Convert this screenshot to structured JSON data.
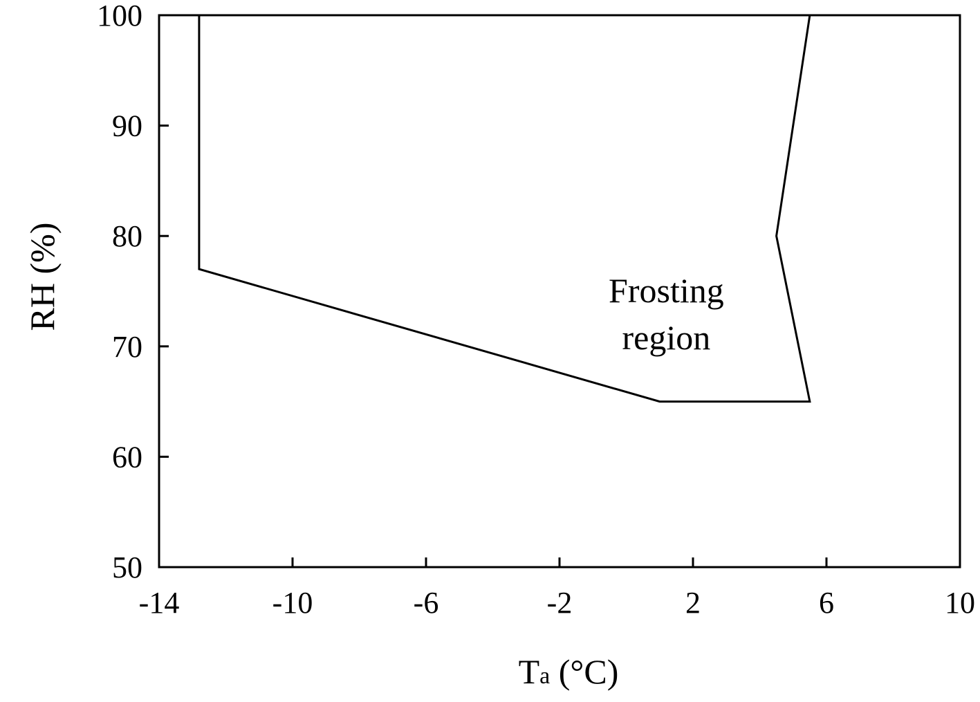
{
  "chart_data": {
    "type": "line",
    "title": "",
    "xlabel": {
      "main": "T",
      "subscript": "a",
      "unit": " (°C)"
    },
    "ylabel": "RH (%)",
    "xlim": [
      -14,
      10
    ],
    "ylim": [
      50,
      100
    ],
    "xticks": [
      -14,
      -10,
      -6,
      -2,
      2,
      6,
      10
    ],
    "xtick_labels": [
      "-14",
      "-10",
      "-6",
      "-2",
      "2",
      "6",
      "10"
    ],
    "yticks": [
      50,
      60,
      70,
      80,
      90,
      100
    ],
    "ytick_labels": [
      "50",
      "60",
      "70",
      "80",
      "90",
      "100"
    ],
    "grid": false,
    "series": [
      {
        "color": "#000000",
        "x": [
          -12.8,
          -12.8,
          1.0,
          5.5,
          4.5,
          5.5
        ],
        "y": [
          100,
          77,
          65,
          65,
          80,
          100
        ]
      }
    ],
    "annotation": {
      "lines": [
        "Frosting",
        "region"
      ],
      "x": 1.2,
      "y": 73.5
    }
  }
}
